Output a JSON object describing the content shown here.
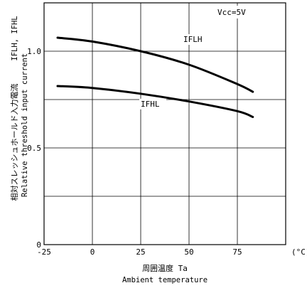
{
  "chart_data": {
    "type": "line",
    "annotation": "Vcc=5V",
    "unit_label": "(°C)",
    "xlabel": {
      "jp": "周囲温度  Ta",
      "en": "Ambient temperature"
    },
    "ylabel": {
      "symbol": "IFLH, IFHL",
      "jp": "相対スレッシュホールド入力電流",
      "en": "Relative threshold input current"
    },
    "xlim": [
      -25,
      100
    ],
    "ylim": [
      0,
      1.25
    ],
    "x_ticks": [
      "-25",
      "0",
      "25",
      "50",
      "75"
    ],
    "y_ticks": [
      "0",
      "0.5",
      "1.0"
    ],
    "grid": true,
    "series": [
      {
        "name": "IFLH",
        "x": [
          -18,
          0,
          25,
          50,
          75,
          83
        ],
        "y": [
          1.07,
          1.05,
          1.0,
          0.93,
          0.83,
          0.79
        ]
      },
      {
        "name": "IFHL",
        "x": [
          -18,
          0,
          25,
          50,
          75,
          83
        ],
        "y": [
          0.82,
          0.81,
          0.78,
          0.74,
          0.69,
          0.66
        ]
      }
    ]
  }
}
